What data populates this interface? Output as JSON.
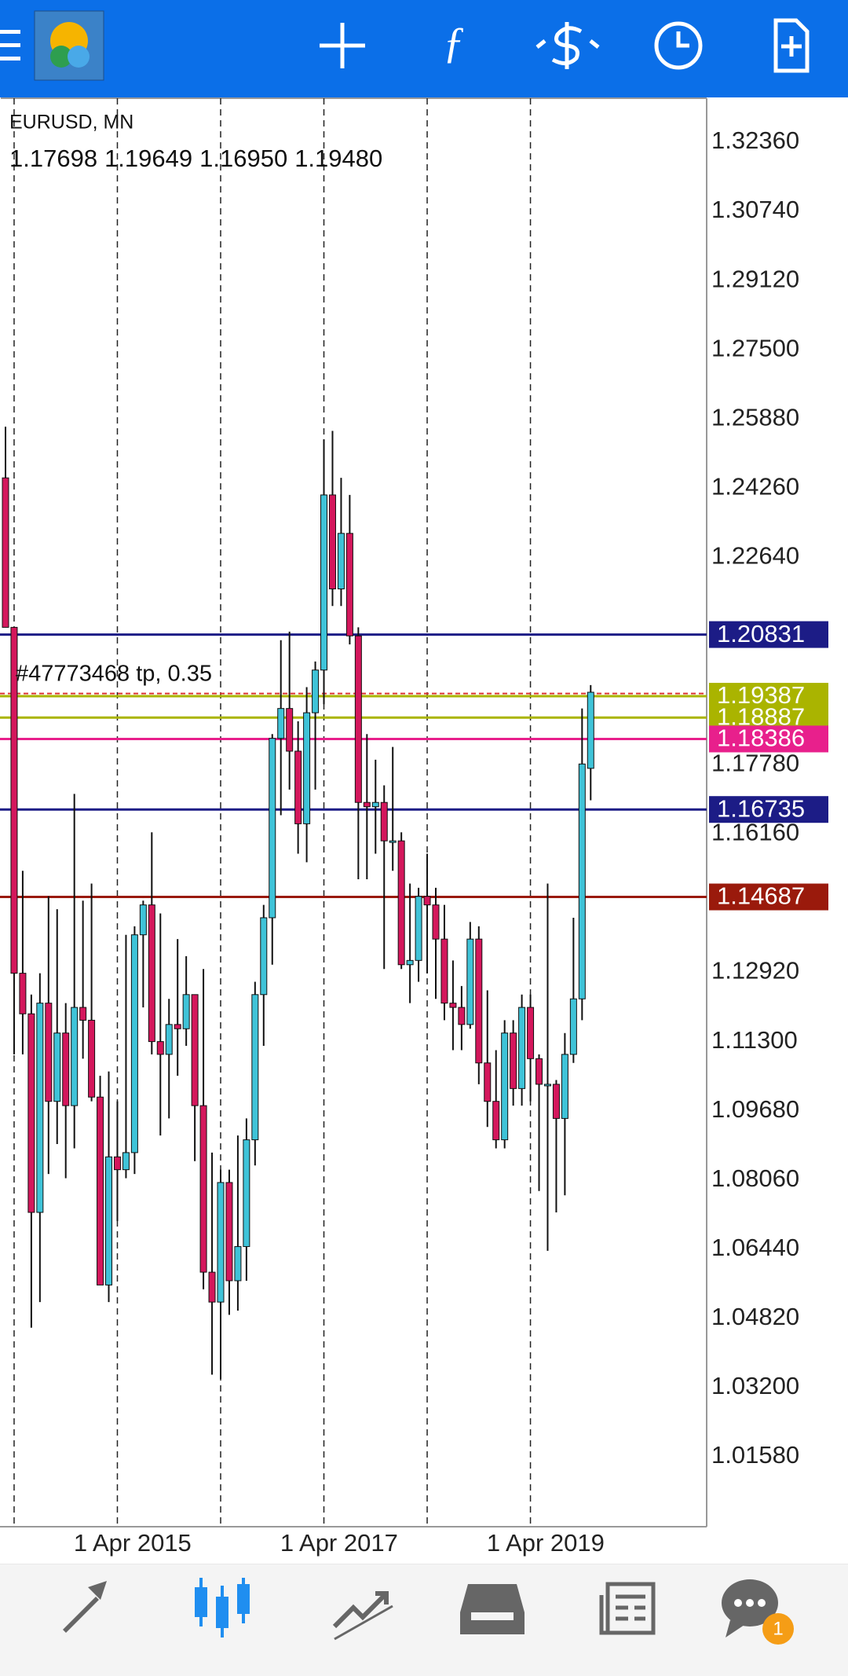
{
  "chart_data": {
    "type": "candlestick",
    "symbol": "EURUSD, MN",
    "ohlc_header": [
      "1.17698",
      "1.19649",
      "1.16950",
      "1.19480"
    ],
    "categories": [
      null,
      null,
      null,
      null,
      "1 Apr 2015",
      null,
      null,
      null,
      null,
      null,
      null,
      null,
      null,
      null,
      null,
      null,
      null,
      null,
      null,
      null,
      null,
      null,
      null,
      null,
      null,
      null,
      null,
      null,
      "1 Apr 2017",
      null,
      null,
      null,
      null,
      null,
      null,
      null,
      null,
      null,
      null,
      null,
      null,
      null,
      null,
      null,
      null,
      null,
      null,
      null,
      null,
      null,
      null,
      null,
      "1 Apr 2019",
      null,
      null,
      null,
      null,
      null,
      null,
      null,
      null,
      null,
      null,
      null,
      null,
      null,
      null,
      null,
      null
    ],
    "open": [
      1.245,
      1.21,
      1.129,
      1.1195,
      1.073,
      1.122,
      1.099,
      1.115,
      1.098,
      1.121,
      1.118,
      1.1,
      1.056,
      1.086,
      1.083,
      1.087,
      1.138,
      1.145,
      1.113,
      1.11,
      1.117,
      1.116,
      1.124,
      1.098,
      1.059,
      1.052,
      1.08,
      1.057,
      1.065,
      1.09,
      1.124,
      1.142,
      1.184,
      1.191,
      1.181,
      1.164,
      1.19,
      1.2,
      1.241,
      1.219,
      1.232,
      1.208,
      1.169,
      1.168,
      1.169,
      1.16,
      1.16,
      1.131,
      1.132,
      1.147,
      1.145,
      1.137,
      1.122,
      1.121,
      1.117,
      1.137,
      1.108,
      1.099,
      1.09,
      1.115,
      1.102,
      1.121,
      1.109,
      1.103,
      1.103,
      1.095,
      1.11,
      1.123,
      1.17698
    ],
    "high": [
      1.257,
      1.21,
      1.153,
      1.124,
      1.129,
      1.147,
      1.144,
      1.122,
      1.171,
      1.146,
      1.15,
      1.105,
      1.106,
      1.099,
      1.138,
      1.14,
      1.146,
      1.162,
      1.143,
      1.123,
      1.137,
      1.133,
      1.124,
      1.13,
      1.087,
      1.083,
      1.083,
      1.091,
      1.095,
      1.127,
      1.145,
      1.185,
      1.207,
      1.209,
      1.188,
      1.196,
      1.202,
      1.254,
      1.256,
      1.245,
      1.241,
      1.21,
      1.185,
      1.179,
      1.173,
      1.182,
      1.162,
      1.15,
      1.149,
      1.157,
      1.149,
      1.145,
      1.132,
      1.126,
      1.141,
      1.14,
      1.125,
      1.111,
      1.118,
      1.118,
      1.124,
      1.124,
      1.11,
      1.15,
      1.104,
      1.115,
      1.142,
      1.191,
      1.19649
    ],
    "low": [
      1.21,
      1.11,
      1.11,
      1.046,
      1.052,
      1.082,
      1.089,
      1.081,
      1.088,
      1.109,
      1.099,
      1.056,
      1.052,
      1.071,
      1.081,
      1.082,
      1.121,
      1.11,
      1.091,
      1.095,
      1.105,
      1.112,
      1.085,
      1.055,
      1.035,
      1.034,
      1.049,
      1.05,
      1.057,
      1.084,
      1.112,
      1.131,
      1.166,
      1.172,
      1.157,
      1.155,
      1.172,
      1.192,
      1.215,
      1.215,
      1.206,
      1.151,
      1.151,
      1.157,
      1.13,
      1.153,
      1.13,
      1.122,
      1.127,
      1.129,
      1.123,
      1.118,
      1.111,
      1.111,
      1.116,
      1.103,
      1.093,
      1.088,
      1.088,
      1.098,
      1.098,
      1.099,
      1.078,
      1.064,
      1.073,
      1.077,
      1.108,
      1.118,
      1.1695
    ],
    "close": [
      1.21,
      1.129,
      1.1195,
      1.073,
      1.122,
      1.099,
      1.115,
      1.098,
      1.121,
      1.118,
      1.1,
      1.056,
      1.086,
      1.083,
      1.087,
      1.138,
      1.145,
      1.113,
      1.11,
      1.117,
      1.116,
      1.124,
      1.098,
      1.059,
      1.052,
      1.08,
      1.057,
      1.065,
      1.09,
      1.124,
      1.142,
      1.184,
      1.191,
      1.181,
      1.164,
      1.19,
      1.2,
      1.241,
      1.219,
      1.232,
      1.208,
      1.169,
      1.168,
      1.169,
      1.16,
      1.16,
      1.131,
      1.132,
      1.147,
      1.145,
      1.137,
      1.122,
      1.121,
      1.117,
      1.137,
      1.108,
      1.099,
      1.09,
      1.115,
      1.102,
      1.121,
      1.109,
      1.103,
      1.103,
      1.095,
      1.11,
      1.123,
      1.178,
      1.1948
    ],
    "up_color": "#3fc3d8",
    "down_color": "#d4175c",
    "ylim": [
      0.9994,
      1.3339
    ],
    "yticks": [
      {
        "value": 1.3236,
        "label": "1.32360"
      },
      {
        "value": 1.3074,
        "label": "1.30740"
      },
      {
        "value": 1.2912,
        "label": "1.29120"
      },
      {
        "value": 1.275,
        "label": "1.27500"
      },
      {
        "value": 1.2588,
        "label": "1.25880"
      },
      {
        "value": 1.2426,
        "label": "1.24260"
      },
      {
        "value": 1.2264,
        "label": "1.22640"
      },
      {
        "value": 1.1778,
        "label": "1.17780"
      },
      {
        "value": 1.1616,
        "label": "1.16160"
      },
      {
        "value": 1.1292,
        "label": "1.12920"
      },
      {
        "value": 1.113,
        "label": "1.11300"
      },
      {
        "value": 1.0968,
        "label": "1.09680"
      },
      {
        "value": 1.0806,
        "label": "1.08060"
      },
      {
        "value": 1.0644,
        "label": "1.06440"
      },
      {
        "value": 1.0482,
        "label": "1.04820"
      },
      {
        "value": 1.032,
        "label": "1.03200"
      },
      {
        "value": 1.0158,
        "label": "1.01580"
      }
    ],
    "levels": [
      {
        "price": 1.20831,
        "color": "#1c1c86"
      },
      {
        "price": 1.19387,
        "color": "#aab400"
      },
      {
        "price": 1.18887,
        "color": "#aab400"
      },
      {
        "price": 1.18386,
        "color": "#e8208c"
      },
      {
        "price": 1.16735,
        "color": "#1c1c86"
      },
      {
        "price": 1.14687,
        "color": "#9a1a0c"
      }
    ],
    "trade": {
      "label": "#47773468 tp, 0.35",
      "price": 1.1945,
      "color": "#d33"
    }
  },
  "notification_badge": 1
}
